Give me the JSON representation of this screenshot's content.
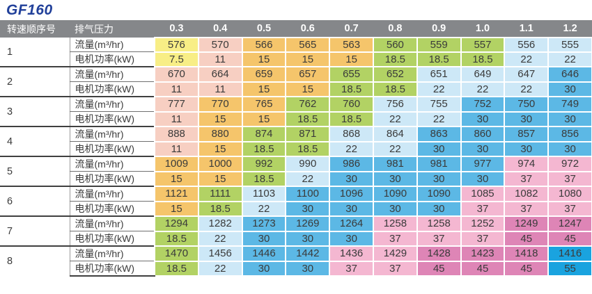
{
  "page_title": "GF160",
  "colors": {
    "title": "#21409a",
    "header_bg": "#85878a",
    "header_text": "#ffffff",
    "cell_text": "#3a3a3a",
    "group_divider": "#3f3f3f",
    "power_palette": {
      "7.5": "#f8ee86",
      "11": "#f7cfc2",
      "15": "#f5c56b",
      "18.5": "#b2d264",
      "22": "#cde8f7",
      "30": "#5cb8e5",
      "37": "#f4b7d1",
      "45": "#de85b6",
      "55": "#1aa3df"
    }
  },
  "table": {
    "corner_header": "转速顺序号",
    "pressure_header": "排气压力",
    "pressures": [
      "0.3",
      "0.4",
      "0.5",
      "0.6",
      "0.7",
      "0.8",
      "0.9",
      "1.0",
      "1.1",
      "1.2"
    ],
    "flow_label": "流量(m³/hr)",
    "power_label": "电机功率(kW)",
    "groups": [
      {
        "id": "1",
        "flow": [
          576,
          570,
          566,
          565,
          563,
          560,
          559,
          557,
          556,
          555
        ],
        "power": [
          7.5,
          11,
          15,
          15,
          15,
          18.5,
          18.5,
          18.5,
          22,
          22
        ]
      },
      {
        "id": "2",
        "flow": [
          670,
          664,
          659,
          657,
          655,
          652,
          651,
          649,
          647,
          646
        ],
        "power": [
          11,
          11,
          15,
          15,
          18.5,
          18.5,
          22,
          22,
          22,
          30
        ]
      },
      {
        "id": "3",
        "flow": [
          777,
          770,
          765,
          762,
          760,
          756,
          755,
          752,
          750,
          749
        ],
        "power": [
          11,
          15,
          15,
          18.5,
          18.5,
          22,
          22,
          30,
          30,
          30
        ]
      },
      {
        "id": "4",
        "flow": [
          888,
          880,
          874,
          871,
          868,
          864,
          863,
          860,
          857,
          856
        ],
        "power": [
          11,
          15,
          18.5,
          18.5,
          22,
          22,
          30,
          30,
          30,
          30
        ]
      },
      {
        "id": "5",
        "flow": [
          1009,
          1000,
          992,
          990,
          986,
          981,
          981,
          977,
          974,
          972
        ],
        "power": [
          15,
          15,
          18.5,
          22,
          30,
          30,
          30,
          30,
          37,
          37
        ]
      },
      {
        "id": "6",
        "flow": [
          1121,
          1111,
          1103,
          1100,
          1096,
          1090,
          1090,
          1085,
          1082,
          1080
        ],
        "power": [
          15,
          18.5,
          22,
          30,
          30,
          30,
          30,
          37,
          37,
          37
        ]
      },
      {
        "id": "7",
        "flow": [
          1294,
          1282,
          1273,
          1269,
          1264,
          1258,
          1258,
          1252,
          1249,
          1247
        ],
        "power": [
          18.5,
          22,
          30,
          30,
          30,
          37,
          37,
          37,
          45,
          45
        ]
      },
      {
        "id": "8",
        "flow": [
          1470,
          1456,
          1446,
          1442,
          1436,
          1429,
          1428,
          1423,
          1418,
          1416
        ],
        "power": [
          18.5,
          22,
          30,
          30,
          37,
          37,
          45,
          45,
          45,
          55
        ]
      }
    ]
  }
}
